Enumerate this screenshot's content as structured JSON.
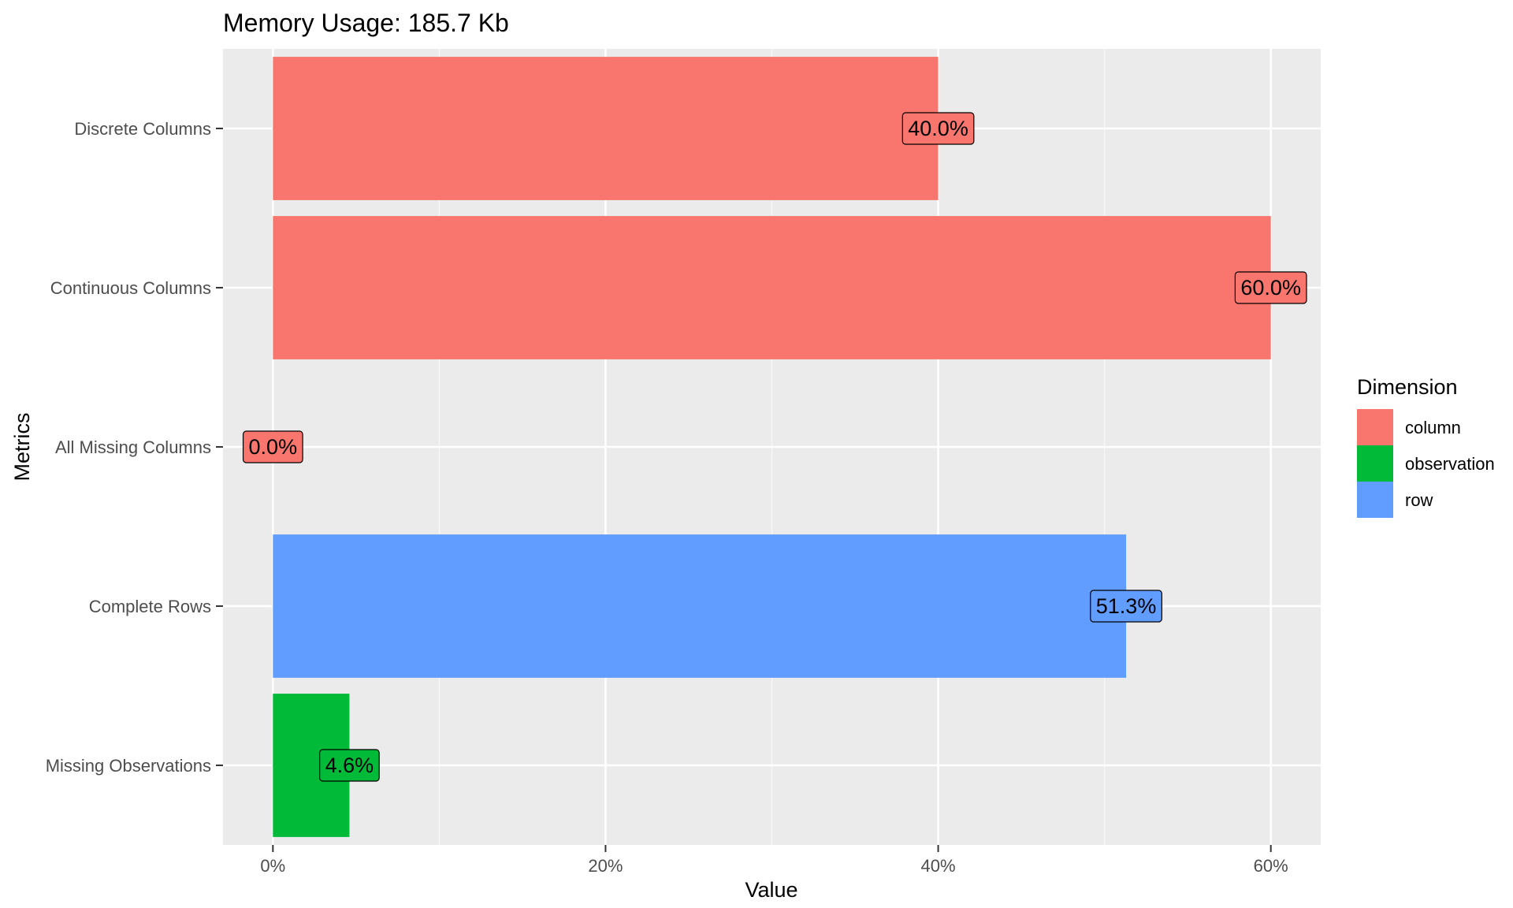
{
  "chart_data": {
    "type": "bar",
    "orientation": "horizontal",
    "title": "Memory Usage: 185.7 Kb",
    "xlabel": "Value",
    "ylabel": "Metrics",
    "xlim": [
      -0.03,
      0.63
    ],
    "x_ticks": [
      0,
      0.2,
      0.4,
      0.6
    ],
    "x_tick_labels": [
      "0%",
      "20%",
      "40%",
      "60%"
    ],
    "grid": true,
    "legend": {
      "title": "Dimension",
      "placement": "right",
      "entries": [
        {
          "name": "column",
          "color": "#F8766D"
        },
        {
          "name": "observation",
          "color": "#00BA38"
        },
        {
          "name": "row",
          "color": "#619CFF"
        }
      ]
    },
    "categories": [
      "Discrete Columns",
      "Continuous Columns",
      "All Missing Columns",
      "Complete Rows",
      "Missing Observations"
    ],
    "values": [
      0.4,
      0.6,
      0.0,
      0.513,
      0.046
    ],
    "data_labels": [
      "40.0%",
      "60.0%",
      "0.0%",
      "51.3%",
      "4.6%"
    ],
    "dimensions": [
      "column",
      "column",
      "column",
      "row",
      "observation"
    ]
  },
  "colors": {
    "panel_background": "#EBEBEB",
    "grid_major": "#FFFFFF",
    "axis_text": "#4D4D4D",
    "title_text": "#000000"
  }
}
